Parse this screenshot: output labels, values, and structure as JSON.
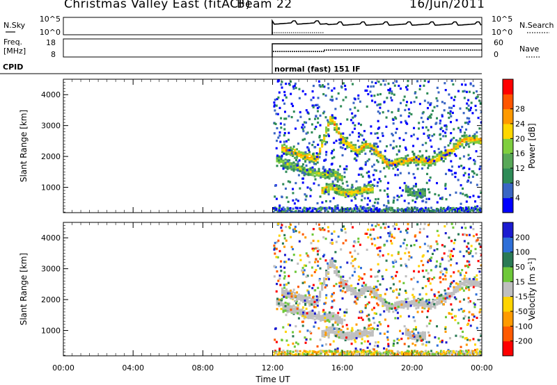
{
  "header": {
    "station": "Christmas Valley East (fitACF)",
    "beam": "Beam 22",
    "date": "16/Jun/2011"
  },
  "strips": {
    "nsky_label": "N.Sky",
    "nsearch_label": "N.Search",
    "freq_label_1": "Freq.",
    "freq_label_2": "[MHz]",
    "nave_label": "Nave",
    "cpid_label": "CPID",
    "cpid_text": "normal (fast) 151 IF",
    "noise_ticks_left": [
      "10^5",
      "10^0"
    ],
    "noise_ticks_right": [
      "10^5",
      "10^0"
    ],
    "freq_ticks": [
      "18",
      "8"
    ],
    "nave_ticks": [
      "60",
      "0"
    ]
  },
  "colors": {
    "power": [
      "#0000ff",
      "#3a66c4",
      "#2e8b57",
      "#58a858",
      "#7fcf3f",
      "#ffd700",
      "#ff9900",
      "#ff5500",
      "#ff0000"
    ],
    "velocity": [
      "#1b1bd0",
      "#2e6fd8",
      "#2a7a55",
      "#6ec83a",
      "#bfbfbf",
      "#ffd400",
      "#ff9a00",
      "#ff5a00",
      "#ff0000"
    ]
  },
  "chart_data": [
    {
      "type": "heatmap",
      "panel": "power",
      "ylabel": "Slant Range [km]",
      "ylim": [
        180,
        4500
      ],
      "yticks": [
        1000,
        2000,
        3000,
        4000
      ],
      "xlim": [
        0,
        24
      ],
      "colorbar_label": "Power [dB]",
      "colorbar_ticks": [
        4,
        8,
        12,
        16,
        20,
        24,
        28
      ],
      "data_start_hour": 12,
      "echo_bands": [
        {
          "t": [
            12.5,
            13.5,
            14.5,
            15.3,
            15.9,
            16.8,
            17.4,
            18.0,
            18.6,
            19.2,
            20.0,
            21.0,
            22.0,
            23.0,
            24.0
          ],
          "range": [
            2300,
            2100,
            1950,
            3300,
            2600,
            2200,
            2450,
            2150,
            1750,
            1850,
            1950,
            1850,
            2150,
            2600,
            2550
          ],
          "intensity": 0.75
        },
        {
          "t": [
            12.2,
            13.0,
            14.0,
            14.8,
            15.4,
            16.0
          ],
          "range": [
            1900,
            1750,
            1550,
            1450,
            1500,
            1300
          ],
          "intensity": 0.55
        },
        {
          "t": [
            14.8,
            15.4,
            16.0,
            16.6,
            17.2,
            17.8
          ],
          "range": [
            950,
            1050,
            850,
            850,
            950,
            1000
          ],
          "intensity": 0.7
        },
        {
          "t": [
            19.6,
            20.2,
            20.8
          ],
          "range": [
            950,
            800,
            900
          ],
          "intensity": 0.45
        }
      ]
    },
    {
      "type": "heatmap",
      "panel": "velocity",
      "ylabel": "Slant Range [km]",
      "ylim": [
        180,
        4500
      ],
      "yticks": [
        1000,
        2000,
        3000,
        4000
      ],
      "xlim": [
        0,
        24
      ],
      "xticks": [
        "00:00",
        "04:00",
        "08:00",
        "12:00",
        "16:00",
        "20:00",
        "00:00"
      ],
      "xlabel": "Time UT",
      "colorbar_label": "Velocity [m s-1]",
      "colorbar_ticks": [
        200,
        100,
        50,
        15,
        -15,
        -50,
        -100,
        -200
      ]
    }
  ]
}
